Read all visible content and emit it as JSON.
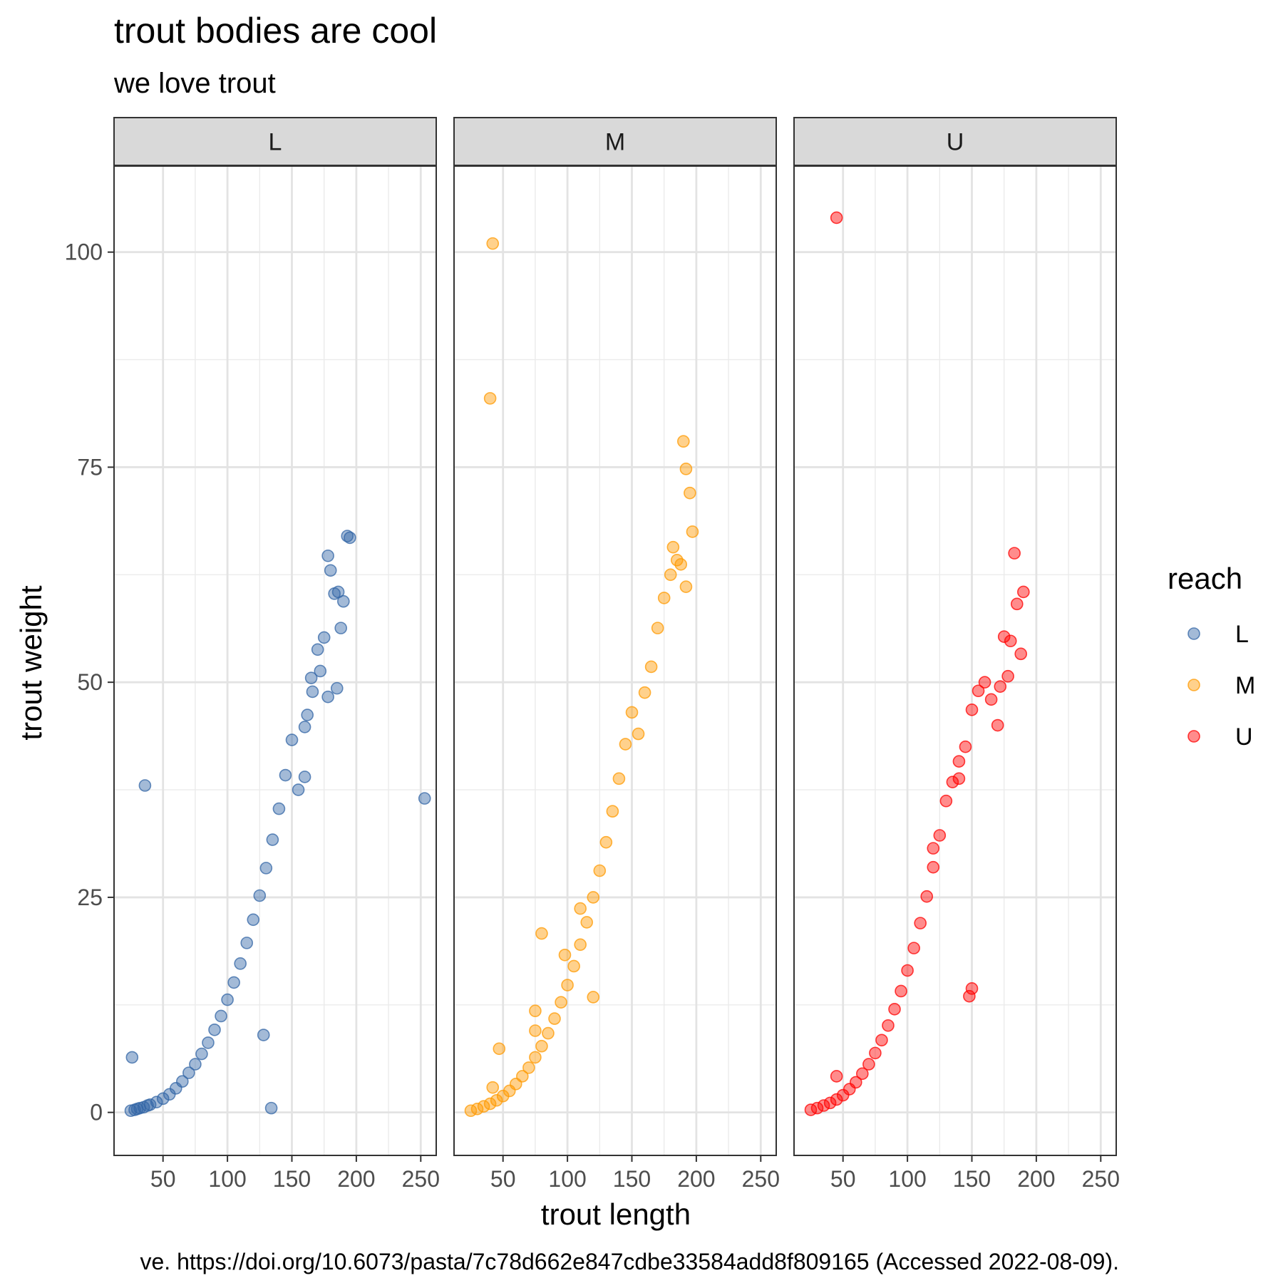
{
  "chart_data": {
    "type": "scatter",
    "title": "trout bodies are cool",
    "subtitle": "we love trout",
    "xlabel": "trout length",
    "ylabel": "trout weight",
    "caption": "ve. https://doi.org/10.6073/pasta/7c78d662e847cdbe33584add8f809165 (Accessed 2022-08-09).",
    "xlim": [
      12,
      262
    ],
    "ylim": [
      -5,
      110
    ],
    "x_ticks": [
      50,
      100,
      150,
      200,
      250
    ],
    "y_ticks": [
      0,
      25,
      50,
      75,
      100
    ],
    "grid": true,
    "legend": {
      "title": "reach",
      "position": "right",
      "entries": [
        "L",
        "M",
        "U"
      ]
    },
    "facets": [
      {
        "label": "L",
        "color": "#3366a6",
        "points": [
          [
            25,
            0.2
          ],
          [
            28,
            0.3
          ],
          [
            30,
            0.4
          ],
          [
            32,
            0.5
          ],
          [
            35,
            0.6
          ],
          [
            38,
            0.8
          ],
          [
            40,
            0.9
          ],
          [
            45,
            1.2
          ],
          [
            50,
            1.6
          ],
          [
            55,
            2.1
          ],
          [
            60,
            2.8
          ],
          [
            65,
            3.6
          ],
          [
            70,
            4.6
          ],
          [
            75,
            5.6
          ],
          [
            80,
            6.8
          ],
          [
            85,
            8.1
          ],
          [
            90,
            9.6
          ],
          [
            95,
            11.2
          ],
          [
            100,
            13.1
          ],
          [
            105,
            15.1
          ],
          [
            110,
            17.3
          ],
          [
            115,
            19.7
          ],
          [
            120,
            22.4
          ],
          [
            125,
            25.2
          ],
          [
            130,
            28.4
          ],
          [
            135,
            31.7
          ],
          [
            140,
            35.3
          ],
          [
            145,
            39.2
          ],
          [
            150,
            43.3
          ],
          [
            155,
            37.5
          ],
          [
            160,
            44.8
          ],
          [
            165,
            50.5
          ],
          [
            170,
            53.8
          ],
          [
            175,
            55.2
          ],
          [
            178,
            64.7
          ],
          [
            180,
            63.0
          ],
          [
            183,
            60.3
          ],
          [
            186,
            60.5
          ],
          [
            188,
            56.3
          ],
          [
            190,
            59.4
          ],
          [
            193,
            67.0
          ],
          [
            195,
            66.8
          ],
          [
            160,
            39.0
          ],
          [
            166,
            48.9
          ],
          [
            162,
            46.2
          ],
          [
            172,
            51.3
          ],
          [
            178,
            48.3
          ],
          [
            185,
            49.3
          ],
          [
            36,
            38.0
          ],
          [
            26,
            6.4
          ],
          [
            128,
            9.0
          ],
          [
            134,
            0.5
          ],
          [
            253,
            36.5
          ]
        ]
      },
      {
        "label": "M",
        "color": "#ff9900",
        "points": [
          [
            25,
            0.2
          ],
          [
            30,
            0.4
          ],
          [
            35,
            0.7
          ],
          [
            40,
            1.0
          ],
          [
            45,
            1.4
          ],
          [
            50,
            1.9
          ],
          [
            55,
            2.5
          ],
          [
            60,
            3.3
          ],
          [
            65,
            4.2
          ],
          [
            70,
            5.2
          ],
          [
            75,
            6.4
          ],
          [
            80,
            7.7
          ],
          [
            85,
            9.2
          ],
          [
            90,
            10.9
          ],
          [
            95,
            12.8
          ],
          [
            100,
            14.8
          ],
          [
            105,
            17.0
          ],
          [
            110,
            19.5
          ],
          [
            115,
            22.1
          ],
          [
            120,
            25.0
          ],
          [
            125,
            28.1
          ],
          [
            130,
            31.4
          ],
          [
            135,
            35.0
          ],
          [
            140,
            38.8
          ],
          [
            145,
            42.8
          ],
          [
            150,
            46.5
          ],
          [
            155,
            44.0
          ],
          [
            160,
            48.8
          ],
          [
            165,
            51.8
          ],
          [
            170,
            56.3
          ],
          [
            175,
            59.8
          ],
          [
            180,
            62.5
          ],
          [
            182,
            65.7
          ],
          [
            185,
            64.2
          ],
          [
            188,
            63.7
          ],
          [
            190,
            78.0
          ],
          [
            192,
            74.8
          ],
          [
            195,
            72.0
          ],
          [
            197,
            67.5
          ],
          [
            192,
            61.1
          ],
          [
            42,
            101.0
          ],
          [
            40,
            83.0
          ],
          [
            80,
            20.8
          ],
          [
            98,
            18.3
          ],
          [
            110,
            23.7
          ],
          [
            75,
            11.8
          ],
          [
            75,
            9.5
          ],
          [
            47,
            7.4
          ],
          [
            42,
            2.9
          ],
          [
            120,
            13.4
          ]
        ]
      },
      {
        "label": "U",
        "color": "#ff0000",
        "points": [
          [
            25,
            0.3
          ],
          [
            30,
            0.5
          ],
          [
            35,
            0.8
          ],
          [
            40,
            1.1
          ],
          [
            45,
            1.5
          ],
          [
            50,
            2.0
          ],
          [
            55,
            2.7
          ],
          [
            60,
            3.5
          ],
          [
            65,
            4.5
          ],
          [
            70,
            5.6
          ],
          [
            75,
            6.9
          ],
          [
            80,
            8.4
          ],
          [
            85,
            10.1
          ],
          [
            90,
            12.0
          ],
          [
            95,
            14.1
          ],
          [
            100,
            16.5
          ],
          [
            105,
            19.1
          ],
          [
            110,
            22.0
          ],
          [
            115,
            25.1
          ],
          [
            120,
            28.5
          ],
          [
            125,
            32.2
          ],
          [
            130,
            36.2
          ],
          [
            135,
            38.4
          ],
          [
            140,
            40.8
          ],
          [
            145,
            42.5
          ],
          [
            150,
            46.8
          ],
          [
            155,
            49.0
          ],
          [
            160,
            50.0
          ],
          [
            165,
            48.0
          ],
          [
            170,
            45.0
          ],
          [
            172,
            49.5
          ],
          [
            175,
            55.3
          ],
          [
            178,
            50.7
          ],
          [
            180,
            54.8
          ],
          [
            183,
            65.0
          ],
          [
            185,
            59.1
          ],
          [
            188,
            53.3
          ],
          [
            190,
            60.5
          ],
          [
            45,
            104.0
          ],
          [
            45,
            4.2
          ],
          [
            120,
            30.7
          ],
          [
            150,
            14.4
          ],
          [
            148,
            13.5
          ],
          [
            140,
            38.8
          ]
        ]
      }
    ]
  }
}
